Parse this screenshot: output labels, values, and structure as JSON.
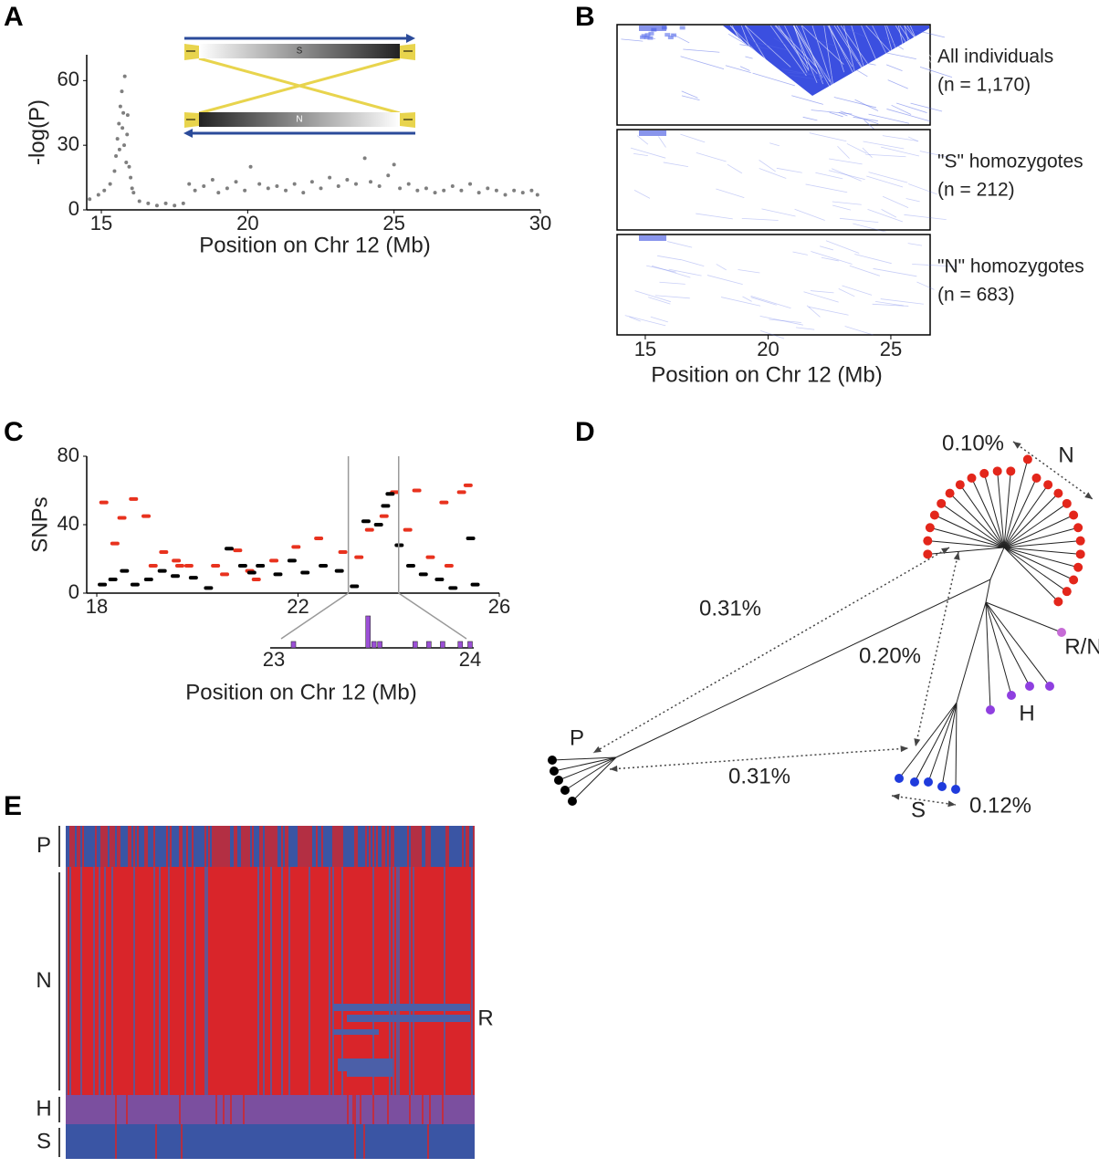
{
  "panel_labels": [
    "A",
    "B",
    "C",
    "D",
    "E"
  ],
  "chart_data": [
    {
      "type": "scatter",
      "marker": "dot",
      "y_label": "-log(P)",
      "x_label": "Position on Chr 12 (Mb)",
      "color": "#7f7f7f",
      "x": [
        14.6,
        14.9,
        15.1,
        15.3,
        15.45,
        15.5,
        15.55,
        15.6,
        15.62,
        15.65,
        15.7,
        15.72,
        15.75,
        15.78,
        15.8,
        15.85,
        15.88,
        15.9,
        15.95,
        16.0,
        16.05,
        16.1,
        16.3,
        16.6,
        16.9,
        17.2,
        17.5,
        17.8,
        18.0,
        18.2,
        18.5,
        18.8,
        19.0,
        19.3,
        19.6,
        19.9,
        20.1,
        20.4,
        20.7,
        21.0,
        21.3,
        21.6,
        21.9,
        22.2,
        22.5,
        22.8,
        23.1,
        23.4,
        23.7,
        24.0,
        24.2,
        24.5,
        24.8,
        25.0,
        25.2,
        25.5,
        25.8,
        26.1,
        26.4,
        26.7,
        27.0,
        27.3,
        27.6,
        27.9,
        28.2,
        28.5,
        28.8,
        29.1,
        29.4,
        29.7,
        29.9
      ],
      "values": [
        5,
        7,
        9,
        12,
        18,
        25,
        33,
        40,
        28,
        48,
        55,
        38,
        45,
        30,
        62,
        22,
        35,
        44,
        20,
        15,
        10,
        8,
        4,
        3,
        2,
        3,
        2,
        3,
        12,
        9,
        11,
        14,
        8,
        10,
        13,
        9,
        20,
        12,
        10,
        11,
        9,
        12,
        8,
        13,
        10,
        15,
        11,
        14,
        12,
        24,
        13,
        11,
        16,
        21,
        10,
        12,
        9,
        10,
        8,
        9,
        11,
        9,
        12,
        8,
        10,
        9,
        7,
        9,
        8,
        9,
        7
      ],
      "xlim": [
        14.5,
        30
      ],
      "xticks": [
        15,
        20,
        25,
        30
      ],
      "ylim": [
        0,
        72
      ],
      "yticks": [
        0,
        30,
        60
      ]
    },
    {
      "type": "scatter",
      "marker": "dash",
      "y_label": "SNPs",
      "x_label": "Position on Chr 12 (Mb)",
      "xlim": [
        17.8,
        26
      ],
      "xticks": [
        18,
        22,
        26
      ],
      "ylim": [
        0,
        80
      ],
      "yticks": [
        0,
        40,
        80
      ],
      "series": [
        {
          "color": "#e8321e",
          "x": [
            18.14,
            18.5,
            18.73,
            18.98,
            18.36,
            19.33,
            19.58,
            19.83,
            20.36,
            20.8,
            21.04,
            21.52,
            21.96,
            22.41,
            22.89,
            23.21,
            23.42,
            23.71,
            23.92,
            24.36,
            24.63,
            24.9,
            25.25,
            25.38,
            25.0,
            24.18,
            21.17,
            20.54,
            19.65,
            19.12
          ],
          "values": [
            53,
            44,
            55,
            45,
            29,
            24,
            19,
            16,
            16,
            25,
            13,
            19,
            27,
            32,
            24,
            21,
            37,
            45,
            59,
            60,
            21,
            53,
            59,
            63,
            16,
            37,
            8,
            11,
            16,
            16
          ]
        },
        {
          "color": "#000000",
          "x": [
            18.11,
            18.32,
            18.55,
            18.76,
            19.03,
            19.3,
            19.56,
            19.92,
            20.22,
            20.63,
            20.9,
            21.25,
            21.6,
            21.88,
            22.14,
            22.5,
            22.82,
            23.12,
            23.35,
            23.6,
            23.74,
            23.83,
            24.01,
            24.24,
            24.49,
            24.81,
            25.08,
            25.43,
            25.52,
            21.08
          ],
          "values": [
            5,
            8,
            13,
            5,
            8,
            13,
            10,
            9,
            3,
            26,
            16,
            16,
            11,
            19,
            12,
            16,
            13,
            4,
            42,
            40,
            51,
            58,
            28,
            16,
            11,
            8,
            3,
            32,
            5,
            12
          ]
        }
      ],
      "inset": {
        "xlim": [
          23,
          24
        ],
        "xticks": [
          23,
          24
        ],
        "color": "#9b4fd6",
        "x": [
          23.1,
          23.48,
          23.51,
          23.54,
          23.72,
          23.79,
          23.86,
          23.95,
          24.0
        ],
        "values": [
          1,
          5,
          1,
          1,
          1,
          1,
          1,
          1,
          1
        ]
      }
    }
  ],
  "panel_a_inset": {
    "labels": [
      "S",
      "N"
    ]
  },
  "ld_plot": {
    "x_label": "Position on Chr 12 (Mb)",
    "xlim": [
      13.85,
      26.6
    ],
    "xticks": [
      15,
      20,
      25
    ],
    "rows": [
      {
        "label": "All individuals",
        "n": "(n = 1,170)"
      },
      {
        "label": "\"S\" homozygotes",
        "n": "(n = 212)"
      },
      {
        "label": "\"N\" homozygotes",
        "n": "(n = 683)"
      }
    ]
  },
  "tree": {
    "distance_labels": [
      "0.10%",
      "0.31%",
      "0.20%",
      "0.31%",
      "0.12%"
    ],
    "clade_labels": [
      "N",
      "R/N",
      "H",
      "P",
      "S"
    ]
  },
  "haplotypes": {
    "groups": [
      "P",
      "N",
      "H",
      "S"
    ],
    "recombinant": "R"
  }
}
